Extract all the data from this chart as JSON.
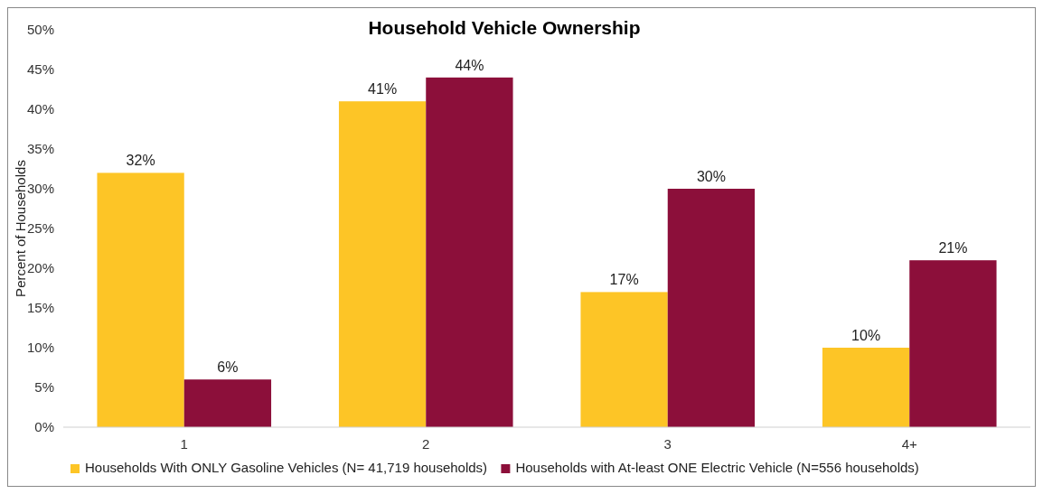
{
  "chart_data": {
    "type": "bar",
    "title": "Household Vehicle Ownership",
    "ylabel": "Percent of Households",
    "categories": [
      "1",
      "2",
      "3",
      "4+"
    ],
    "series": [
      {
        "name": "Households With ONLY Gasoline Vehicles  (N= 41,719 households)",
        "color": "#fdc526",
        "values": [
          32,
          41,
          17,
          10
        ],
        "value_labels": [
          "32%",
          "41%",
          "17%",
          "10%"
        ]
      },
      {
        "name": "Households with At-least ONE Electric Vehicle (N=556 households)",
        "color": "#8c0f3a",
        "values": [
          6,
          44,
          30,
          21
        ],
        "value_labels": [
          "6%",
          "44%",
          "30%",
          "21%"
        ]
      }
    ],
    "ylim": [
      0,
      50
    ],
    "yticks": [
      {
        "value": 0,
        "label": "0%"
      },
      {
        "value": 5,
        "label": "5%"
      },
      {
        "value": 10,
        "label": "10%"
      },
      {
        "value": 15,
        "label": "15%"
      },
      {
        "value": 20,
        "label": "20%"
      },
      {
        "value": 25,
        "label": "25%"
      },
      {
        "value": 30,
        "label": "30%"
      },
      {
        "value": 35,
        "label": "35%"
      },
      {
        "value": 40,
        "label": "40%"
      },
      {
        "value": 45,
        "label": "45%"
      },
      {
        "value": 50,
        "label": "50%"
      }
    ],
    "grid": false,
    "legend": "bottom"
  }
}
